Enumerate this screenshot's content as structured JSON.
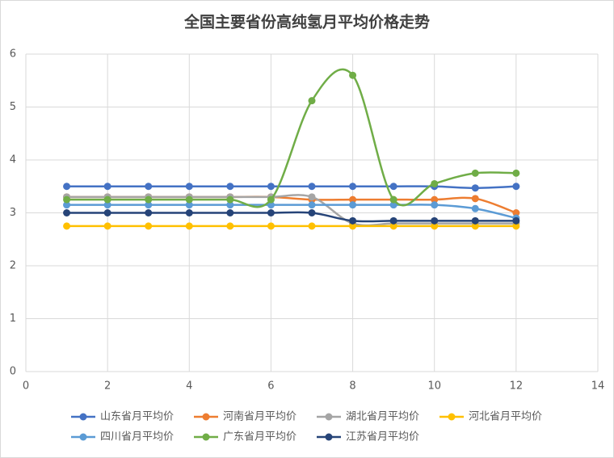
{
  "chart_data": {
    "type": "line",
    "title": "全国主要省份高纯氢月平均价格走势",
    "x": [
      1,
      2,
      3,
      4,
      5,
      6,
      7,
      8,
      9,
      10,
      11,
      12
    ],
    "xlim": [
      0,
      14
    ],
    "xticks": [
      0,
      2,
      4,
      6,
      8,
      10,
      12,
      14
    ],
    "ylim": [
      0,
      6
    ],
    "yticks": [
      0,
      1,
      2,
      3,
      4,
      5,
      6
    ],
    "grid": true,
    "smooth": true,
    "legend": "bottom",
    "series": [
      {
        "name": "山东省月平均价",
        "color": "#4472c4",
        "values": [
          3.5,
          3.5,
          3.5,
          3.5,
          3.5,
          3.5,
          3.5,
          3.5,
          3.5,
          3.5,
          3.47,
          3.5
        ]
      },
      {
        "name": "河南省月平均价",
        "color": "#ed7d31",
        "values": [
          3.3,
          3.3,
          3.3,
          3.3,
          3.3,
          3.3,
          3.25,
          3.25,
          3.25,
          3.25,
          3.27,
          3.0
        ]
      },
      {
        "name": "湖北省月平均价",
        "color": "#a5a5a5",
        "values": [
          3.3,
          3.3,
          3.3,
          3.3,
          3.3,
          3.3,
          3.3,
          2.8,
          2.8,
          2.8,
          2.8,
          2.8
        ]
      },
      {
        "name": "河北省月平均价",
        "color": "#ffc000",
        "values": [
          2.75,
          2.75,
          2.75,
          2.75,
          2.75,
          2.75,
          2.75,
          2.75,
          2.75,
          2.75,
          2.75,
          2.75
        ]
      },
      {
        "name": "四川省月平均价",
        "color": "#5b9bd5",
        "values": [
          3.15,
          3.15,
          3.15,
          3.15,
          3.15,
          3.15,
          3.15,
          3.15,
          3.15,
          3.15,
          3.08,
          2.9
        ]
      },
      {
        "name": "广东省月平均价",
        "color": "#70ad47",
        "values": [
          3.25,
          3.25,
          3.25,
          3.25,
          3.25,
          3.25,
          5.12,
          5.6,
          3.25,
          3.55,
          3.75,
          3.75
        ]
      },
      {
        "name": "江苏省月平均价",
        "color": "#264478",
        "values": [
          3.0,
          3.0,
          3.0,
          3.0,
          3.0,
          3.0,
          3.0,
          2.85,
          2.85,
          2.85,
          2.85,
          2.85
        ]
      }
    ]
  }
}
